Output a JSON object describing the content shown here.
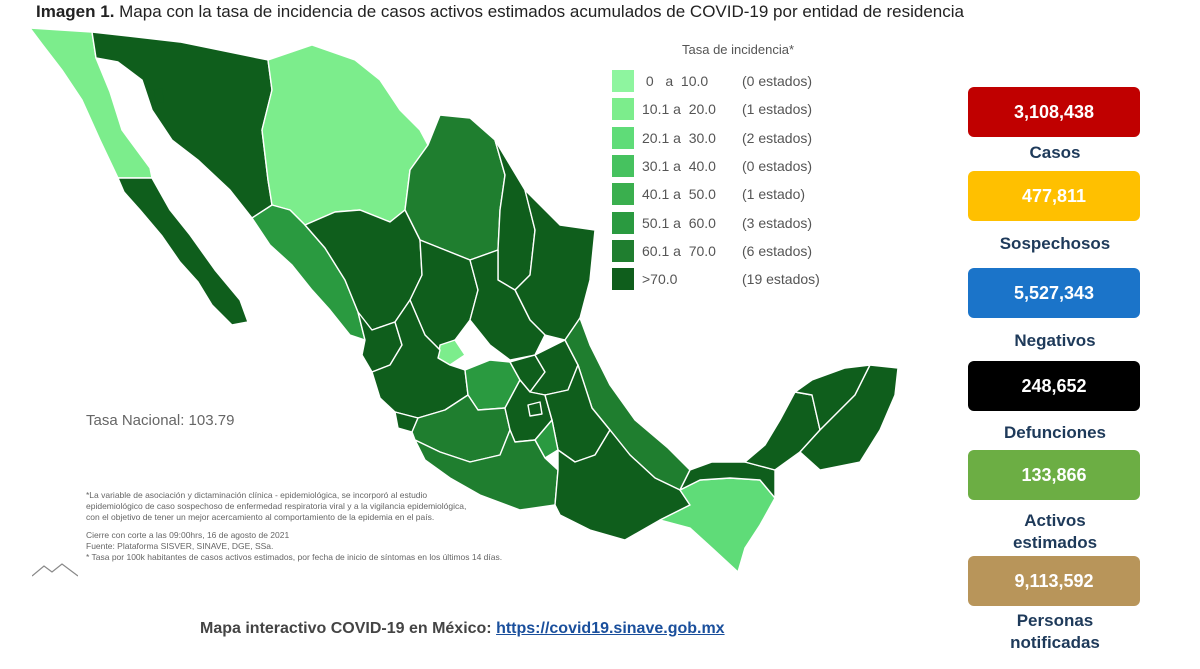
{
  "title": {
    "bold": "Imagen 1.",
    "rest": " Mapa con la tasa de incidencia de casos activos estimados acumulados de COVID-19 por entidad de residencia"
  },
  "legend": {
    "title": "Tasa de incidencia*",
    "items": [
      {
        "range": " 0   a  10.0",
        "count": "(0 estados)",
        "color": "#8ef59f"
      },
      {
        "range": "10.1 a  20.0",
        "count": "(1 estados)",
        "color": "#7ced8c"
      },
      {
        "range": "20.1 a  30.0",
        "count": "(2 estados)",
        "color": "#5fdc78"
      },
      {
        "range": "30.1 a  40.0",
        "count": "(0 estados)",
        "color": "#46c25f"
      },
      {
        "range": "40.1 a  50.0",
        "count": "(1 estado)",
        "color": "#3aaf4e"
      },
      {
        "range": "50.1 a  60.0",
        "count": "(3 estados)",
        "color": "#2a9a40"
      },
      {
        "range": "60.1 a  70.0",
        "count": "(6 estados)",
        "color": "#1f7e2f"
      },
      {
        "range": ">70.0",
        "count": "(19 estados)",
        "color": "#0f5e1c"
      }
    ]
  },
  "tasa_nacional": "Tasa Nacional: 103.79",
  "notes": {
    "line1": "*La variable de asociación y dictaminación clínica - epidemiológica, se incorporó al estudio",
    "line2": "epidemiológico de caso sospechoso de enfermedad respiratoria viral y a la vigilancia epidemiológica,",
    "line3": "con el objetivo de tener un mejor acercamiento al comportamiento de la epidemia en el país.",
    "cierre": "Cierre con corte a las 09:00hrs, 16 de agosto de 2021",
    "fuente": "Fuente: Plataforma SISVER, SINAVE, DGE, SSa.",
    "tasa": "* Tasa por 100k habitantes de casos activos estimados, por fecha de inicio de síntomas en los últimos 14 días."
  },
  "footer": {
    "text": "Mapa interactivo COVID-19 en México: ",
    "link": "https://covid19.sinave.gob.mx"
  },
  "stats": [
    {
      "value": "3,108,438",
      "label": "Casos",
      "color": "#c00000"
    },
    {
      "value": "477,811",
      "label": "Sospechosos",
      "color": "#ffc000"
    },
    {
      "value": "5,527,343",
      "label": "Negativos",
      "color": "#1b74c9"
    },
    {
      "value": "248,652",
      "label": "Defunciones",
      "color": "#000000"
    },
    {
      "value": "133,866",
      "label": "Activos estimados",
      "color": "#6cae44"
    },
    {
      "value": "9,113,592",
      "label": "Personas notificadas",
      "color": "#b8955a"
    }
  ],
  "colors": {
    "dark": "#0f5e1c",
    "mid": "#1f7e2f",
    "medium": "#2a9a40",
    "light": "#7ced8c",
    "light2": "#5fdc78",
    "border": "#ffffff"
  }
}
